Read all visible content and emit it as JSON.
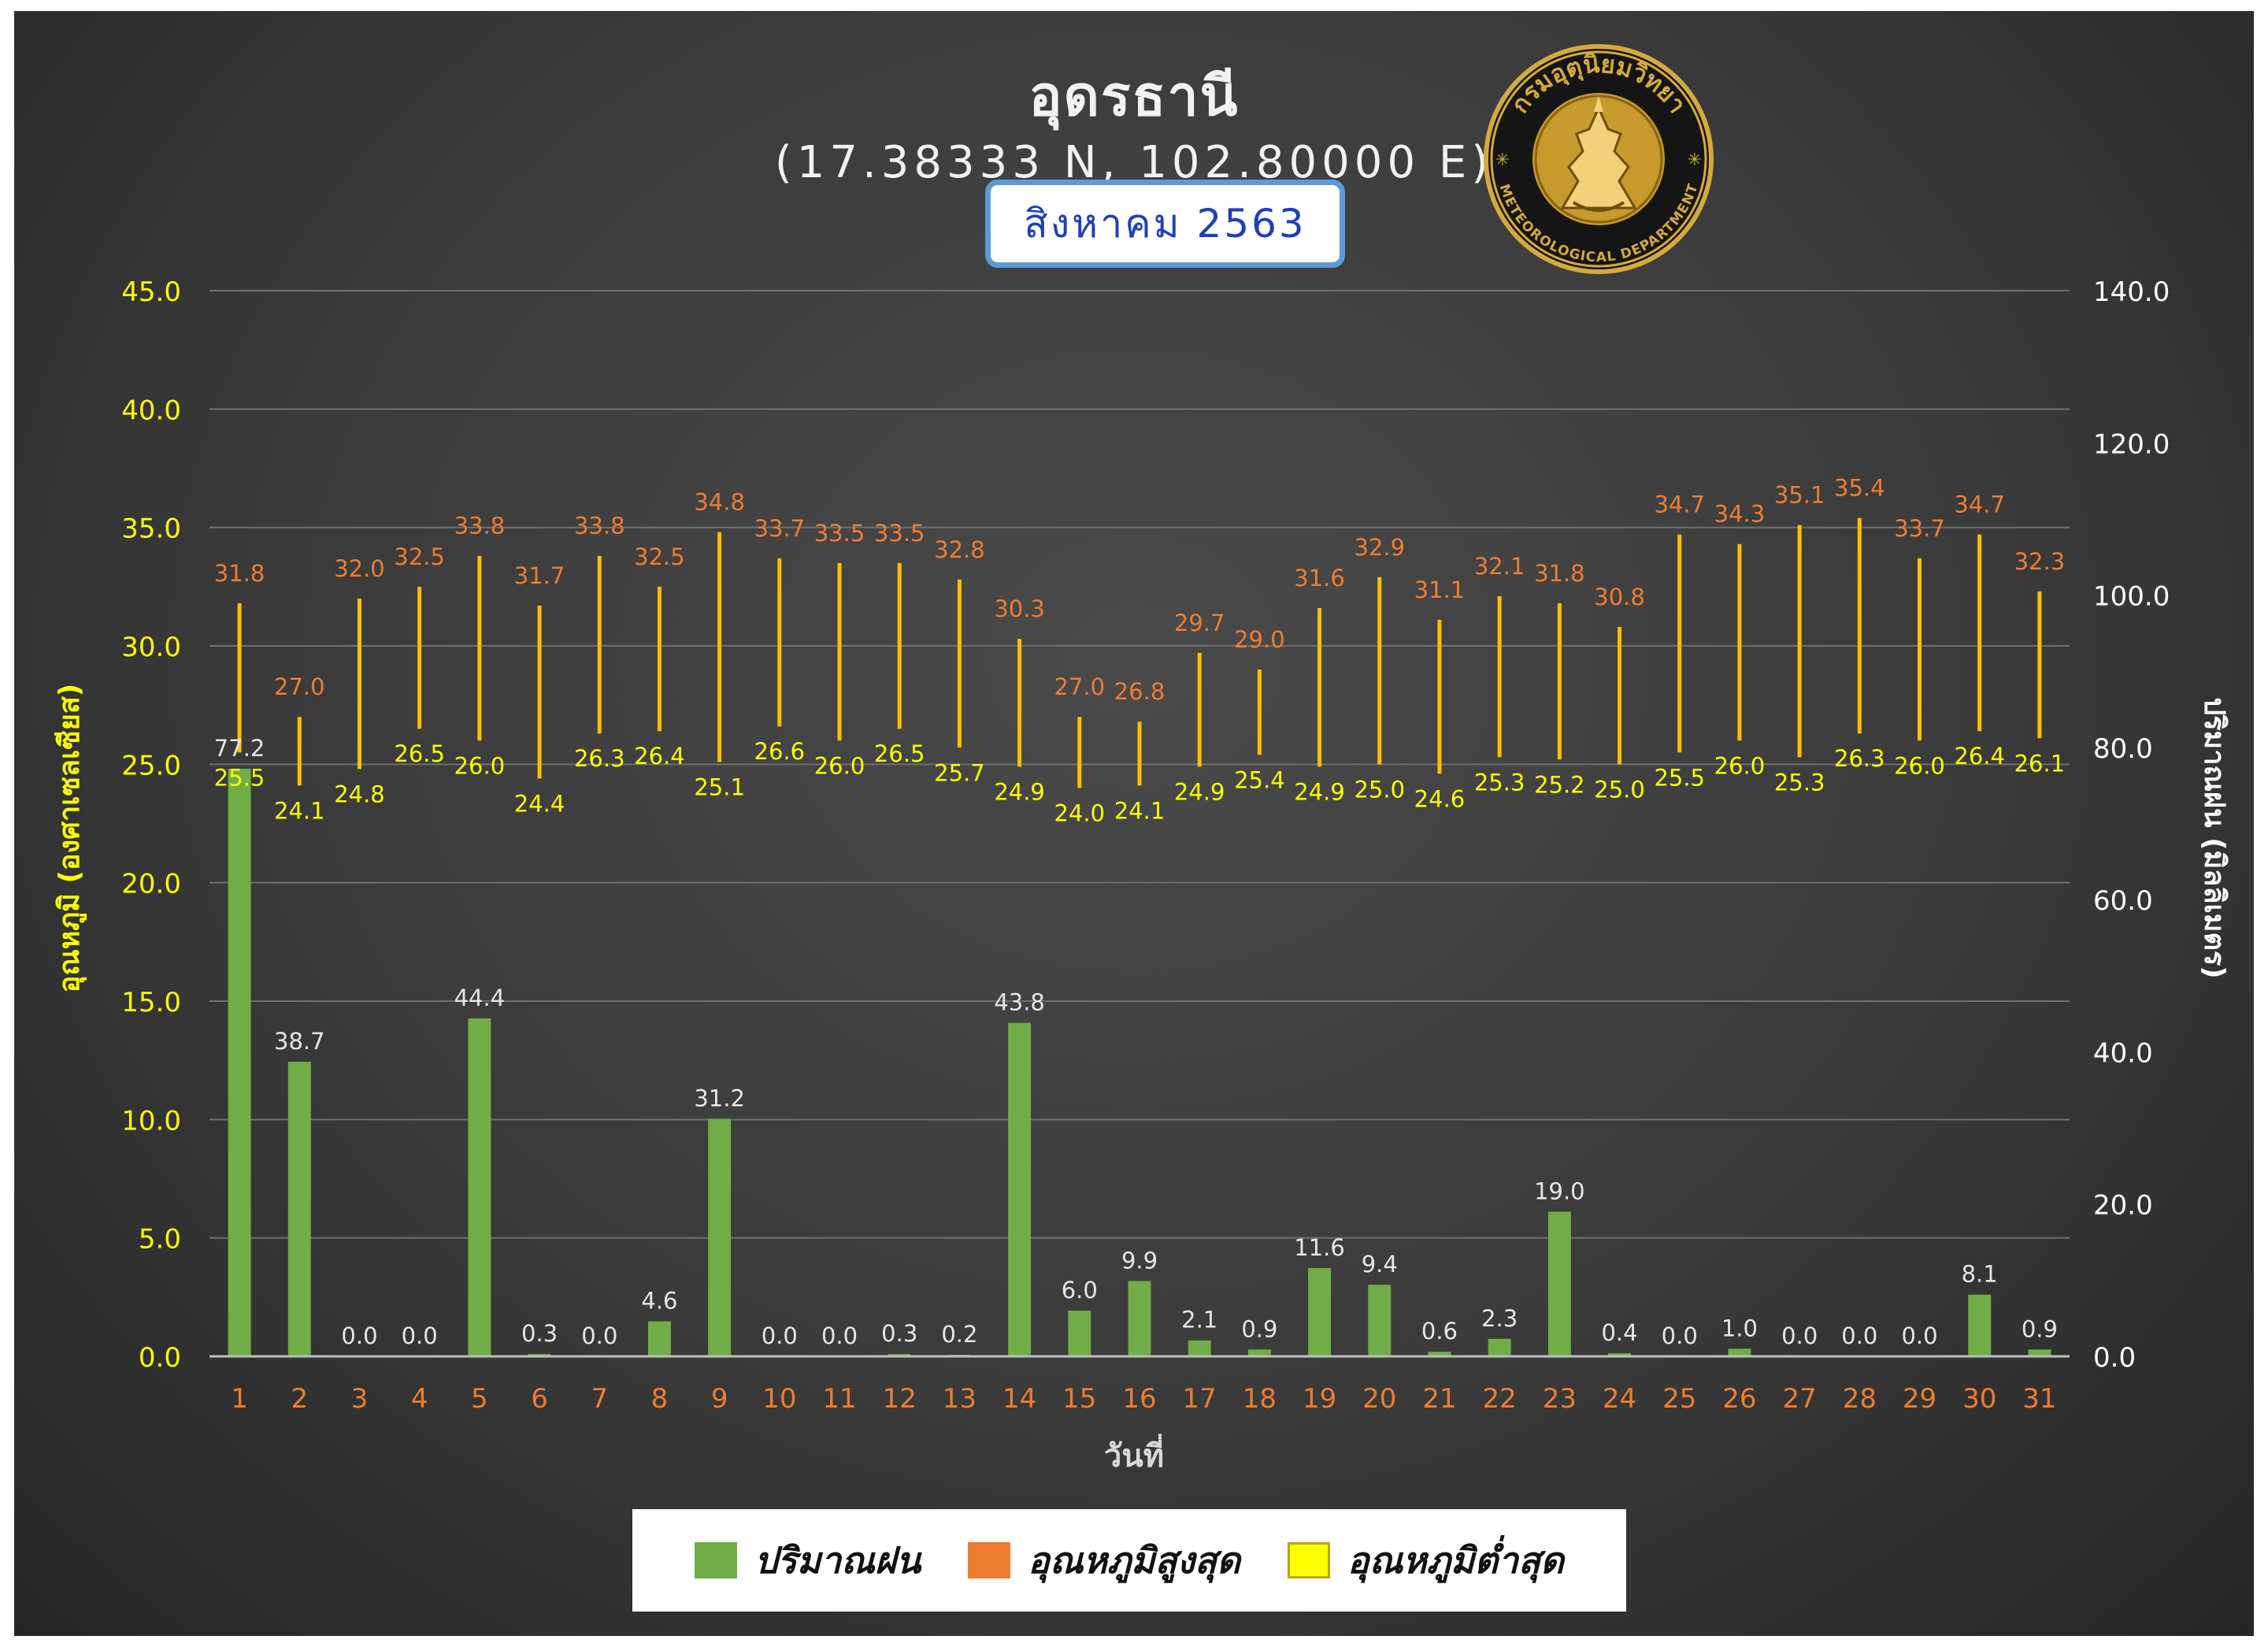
{
  "chart_data": {
    "type": "bar",
    "title": "อุดรธานี",
    "subtitle": "(17.38333 N, 102.80000 E)",
    "period": "สิงหาคม 2563",
    "xlabel": "วันที่",
    "ylabel_left": "อุณหภูมิ (องศาเซลเซียส)",
    "ylabel_right": "ปริมาณฝน (มิลลิเมตร)",
    "ylim_left": [
      0,
      45
    ],
    "ylim_right": [
      0,
      140
    ],
    "yticks_left": [
      "0.0",
      "5.0",
      "10.0",
      "15.0",
      "20.0",
      "25.0",
      "30.0",
      "35.0",
      "40.0",
      "45.0"
    ],
    "yticks_right": [
      "0.0",
      "20.0",
      "40.0",
      "60.0",
      "80.0",
      "100.0",
      "120.0",
      "140.0"
    ],
    "categories": [
      "1",
      "2",
      "3",
      "4",
      "5",
      "6",
      "7",
      "8",
      "9",
      "10",
      "11",
      "12",
      "13",
      "14",
      "15",
      "16",
      "17",
      "18",
      "19",
      "20",
      "21",
      "22",
      "23",
      "24",
      "25",
      "26",
      "27",
      "28",
      "29",
      "30",
      "31"
    ],
    "series": [
      {
        "name": "ปริมาณฝน",
        "axis": "right",
        "type": "bar",
        "values": [
          77.2,
          38.7,
          0.0,
          0.0,
          44.4,
          0.3,
          0.0,
          4.6,
          31.2,
          0.0,
          0.0,
          0.3,
          0.2,
          43.8,
          6.0,
          9.9,
          2.1,
          0.9,
          11.6,
          9.4,
          0.6,
          2.3,
          19.0,
          0.4,
          0.0,
          1.0,
          0.0,
          0.0,
          0.0,
          8.1,
          0.9
        ]
      },
      {
        "name": "อุณหภูมิสูงสุด",
        "axis": "left",
        "type": "range-high",
        "values": [
          31.8,
          27.0,
          32.0,
          32.5,
          33.8,
          31.7,
          33.8,
          32.5,
          34.8,
          33.7,
          33.5,
          33.5,
          32.8,
          30.3,
          27.0,
          26.8,
          29.7,
          29.0,
          31.6,
          32.9,
          31.1,
          32.1,
          31.8,
          30.8,
          34.7,
          34.3,
          35.1,
          35.4,
          33.7,
          34.7,
          32.3
        ]
      },
      {
        "name": "อุณหภูมิต่ำสุด",
        "axis": "left",
        "type": "range-low",
        "values": [
          25.5,
          24.1,
          24.8,
          26.5,
          26.0,
          24.4,
          26.3,
          26.4,
          25.1,
          26.6,
          26.0,
          26.5,
          25.7,
          24.9,
          24.0,
          24.1,
          24.9,
          25.4,
          24.9,
          25.0,
          24.6,
          25.3,
          25.2,
          25.0,
          25.5,
          26.0,
          25.3,
          26.3,
          26.0,
          26.4,
          26.1
        ]
      }
    ],
    "grid": true,
    "legend_position": "bottom"
  },
  "logo": {
    "text_top": "กรมอุตุนิยมวิทยา",
    "text_bottom": "METEOROLOGICAL DEPARTMENT"
  },
  "colors": {
    "rain": "#70ad47",
    "tmax_label": "#ed7d31",
    "tmin_label": "#ffff00",
    "range_bar": "#ffc000",
    "axis_left": "#ffff00",
    "axis_right": "#ffffff",
    "day_label": "#ed7d31"
  }
}
